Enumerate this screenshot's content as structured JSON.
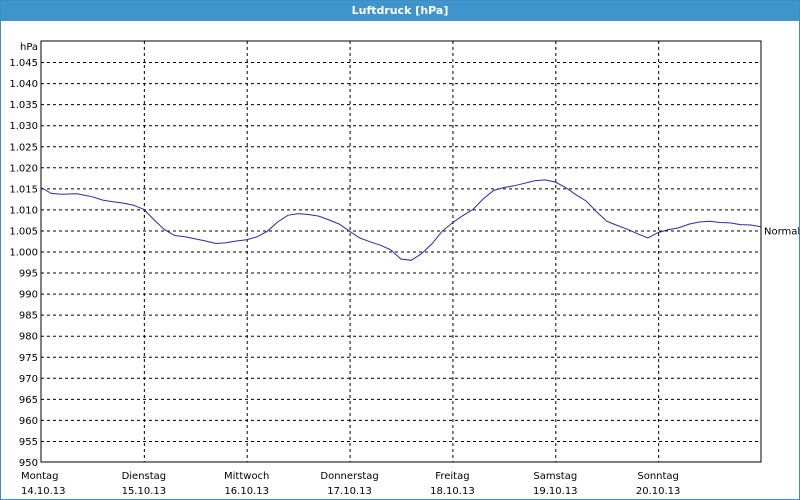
{
  "window": {
    "title": "Luftdruck [hPa]"
  },
  "chart_data": {
    "type": "line",
    "title": "Luftdruck [hPa]",
    "ylabel": "hPa",
    "ylim": [
      950,
      1050
    ],
    "y_ticks": [
      "950",
      "955",
      "960",
      "965",
      "970",
      "975",
      "980",
      "985",
      "990",
      "995",
      "1.000",
      "1.005",
      "1.010",
      "1.015",
      "1.020",
      "1.025",
      "1.030",
      "1.035",
      "1.040",
      "1.045"
    ],
    "x_range": [
      0,
      7
    ],
    "x_units": "days",
    "x_ticks": [
      {
        "x": 0,
        "day": "Montag",
        "date": "14.10.13"
      },
      {
        "x": 1,
        "day": "Dienstag",
        "date": "15.10.13"
      },
      {
        "x": 2,
        "day": "Mittwoch",
        "date": "16.10.13"
      },
      {
        "x": 3,
        "day": "Donnerstag",
        "date": "17.10.13"
      },
      {
        "x": 4,
        "day": "Freitag",
        "date": "18.10.13"
      },
      {
        "x": 5,
        "day": "Samstag",
        "date": "19.10.13"
      },
      {
        "x": 6,
        "day": "Sonntag",
        "date": "20.10.13"
      }
    ],
    "grid": true,
    "series": [
      {
        "name": "Normal",
        "color": "#2a2aa8",
        "x": [
          0,
          0.1,
          0.2,
          0.35,
          0.5,
          0.6,
          0.7,
          0.8,
          0.9,
          1.0,
          1.1,
          1.2,
          1.3,
          1.4,
          1.5,
          1.6,
          1.7,
          1.8,
          1.9,
          2.0,
          2.1,
          2.2,
          2.3,
          2.4,
          2.5,
          2.6,
          2.7,
          2.8,
          2.9,
          3.0,
          3.1,
          3.2,
          3.3,
          3.4,
          3.5,
          3.6,
          3.7,
          3.8,
          3.9,
          4.0,
          4.1,
          4.2,
          4.3,
          4.4,
          4.5,
          4.6,
          4.7,
          4.8,
          4.9,
          5.0,
          5.1,
          5.2,
          5.3,
          5.4,
          5.5,
          5.6,
          5.7,
          5.8,
          5.9,
          6.0,
          6.1,
          6.2,
          6.3,
          6.4,
          6.5,
          6.6,
          6.7,
          6.8,
          6.9,
          7.0
        ],
        "y": [
          1015.2,
          1013.8,
          1013.6,
          1013.7,
          1013.0,
          1012.2,
          1011.8,
          1011.5,
          1011.0,
          1010.0,
          1007.5,
          1005.2,
          1003.8,
          1003.5,
          1003.0,
          1002.5,
          1001.9,
          1002.1,
          1002.5,
          1002.8,
          1003.5,
          1004.8,
          1007.0,
          1008.6,
          1009.0,
          1008.8,
          1008.4,
          1007.5,
          1006.5,
          1004.8,
          1003.2,
          1002.3,
          1001.5,
          1000.4,
          998.2,
          997.9,
          999.5,
          1001.8,
          1004.8,
          1006.8,
          1008.5,
          1010.0,
          1012.5,
          1014.5,
          1015.2,
          1015.6,
          1016.2,
          1016.8,
          1017.0,
          1016.5,
          1015.2,
          1013.5,
          1012.0,
          1009.5,
          1007.2,
          1006.2,
          1005.3,
          1004.2,
          1003.2,
          1004.5,
          1005.2,
          1005.6,
          1006.5,
          1007.0,
          1007.2,
          1006.9,
          1006.8,
          1006.4,
          1006.3,
          1005.9
        ]
      }
    ]
  }
}
